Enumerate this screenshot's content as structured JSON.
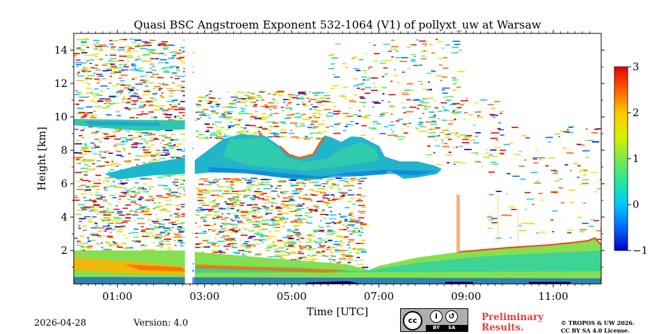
{
  "chart_data": {
    "type": "heatmap",
    "title": "Quasi BSC Angstroem Exponent 532-1064 (V1) of pollyxt_uw at Warsaw",
    "xlabel": "Time [UTC]",
    "ylabel": "Height [km]",
    "xlim": [
      0,
      12.1
    ],
    "ylim": [
      0,
      15
    ],
    "x_tick_values": [
      1,
      3,
      5,
      7,
      9,
      11
    ],
    "x_tick_labels": [
      "01:00",
      "03:00",
      "05:00",
      "07:00",
      "09:00",
      "11:00"
    ],
    "y_tick_values": [
      2,
      4,
      6,
      8,
      10,
      12,
      14
    ],
    "y_tick_labels": [
      "2",
      "4",
      "6",
      "8",
      "10",
      "12",
      "14"
    ],
    "colorbar": {
      "range": [
        -1,
        3
      ],
      "ticks": [
        3,
        2,
        1,
        0,
        -1
      ],
      "tick_labels": [
        "3",
        "2",
        "1",
        "0",
        "−1"
      ],
      "colormap": "jet",
      "colors": [
        "#0000c8",
        "#0064ff",
        "#00c8ff",
        "#20e6a0",
        "#7ee84a",
        "#d8f000",
        "#ffc800",
        "#ff6400",
        "#e60000"
      ]
    },
    "data_gap": {
      "start": 2.55,
      "end": 2.72
    },
    "features": [
      {
        "name": "boundary layer",
        "time_range": [
          0,
          12.1
        ],
        "height_range": [
          0,
          2.8
        ]
      },
      {
        "name": "mid-level cloud layer",
        "time_range": [
          2.7,
          8.3
        ],
        "height_range": [
          6.2,
          9.0
        ]
      },
      {
        "name": "aerosol layer",
        "time_range": [
          0,
          2.55
        ],
        "height_range": [
          9.4,
          10.0
        ]
      }
    ]
  },
  "footer": {
    "date": "2026-04-28",
    "version": "Version: 4.0",
    "preliminary": [
      "Preliminary",
      "Results."
    ],
    "copyright": [
      "© TROPOS & UW 2026.",
      "CC BY SA 4.0 License."
    ],
    "license_badge": {
      "cc": "cc",
      "by": "BY",
      "sa": "SA"
    }
  }
}
